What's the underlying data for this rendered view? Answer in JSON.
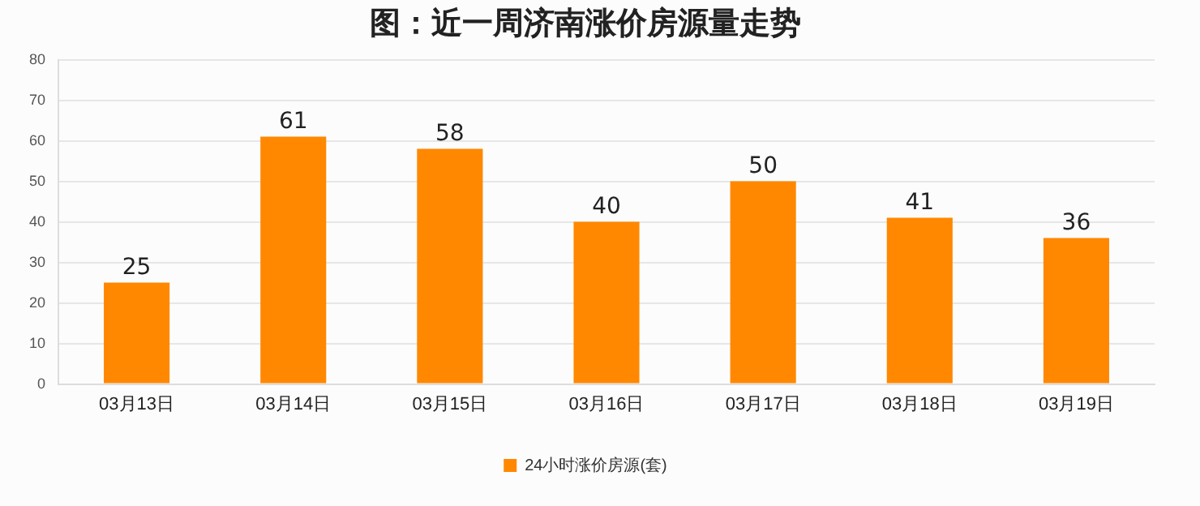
{
  "chart_data": {
    "type": "bar",
    "title": "图：近一周济南涨价房源量走势",
    "categories": [
      "03月13日",
      "03月14日",
      "03月15日",
      "03月16日",
      "03月17日",
      "03月18日",
      "03月19日"
    ],
    "series": [
      {
        "name": "24小时涨价房源(套)",
        "color": "#ff8800",
        "values": [
          25,
          61,
          58,
          40,
          50,
          41,
          36
        ]
      }
    ],
    "ylim": [
      0,
      80
    ],
    "yticks": [
      0,
      10,
      20,
      30,
      40,
      50,
      60,
      70,
      80
    ],
    "grid": "y",
    "legend": "bottom",
    "data_labels": true
  }
}
